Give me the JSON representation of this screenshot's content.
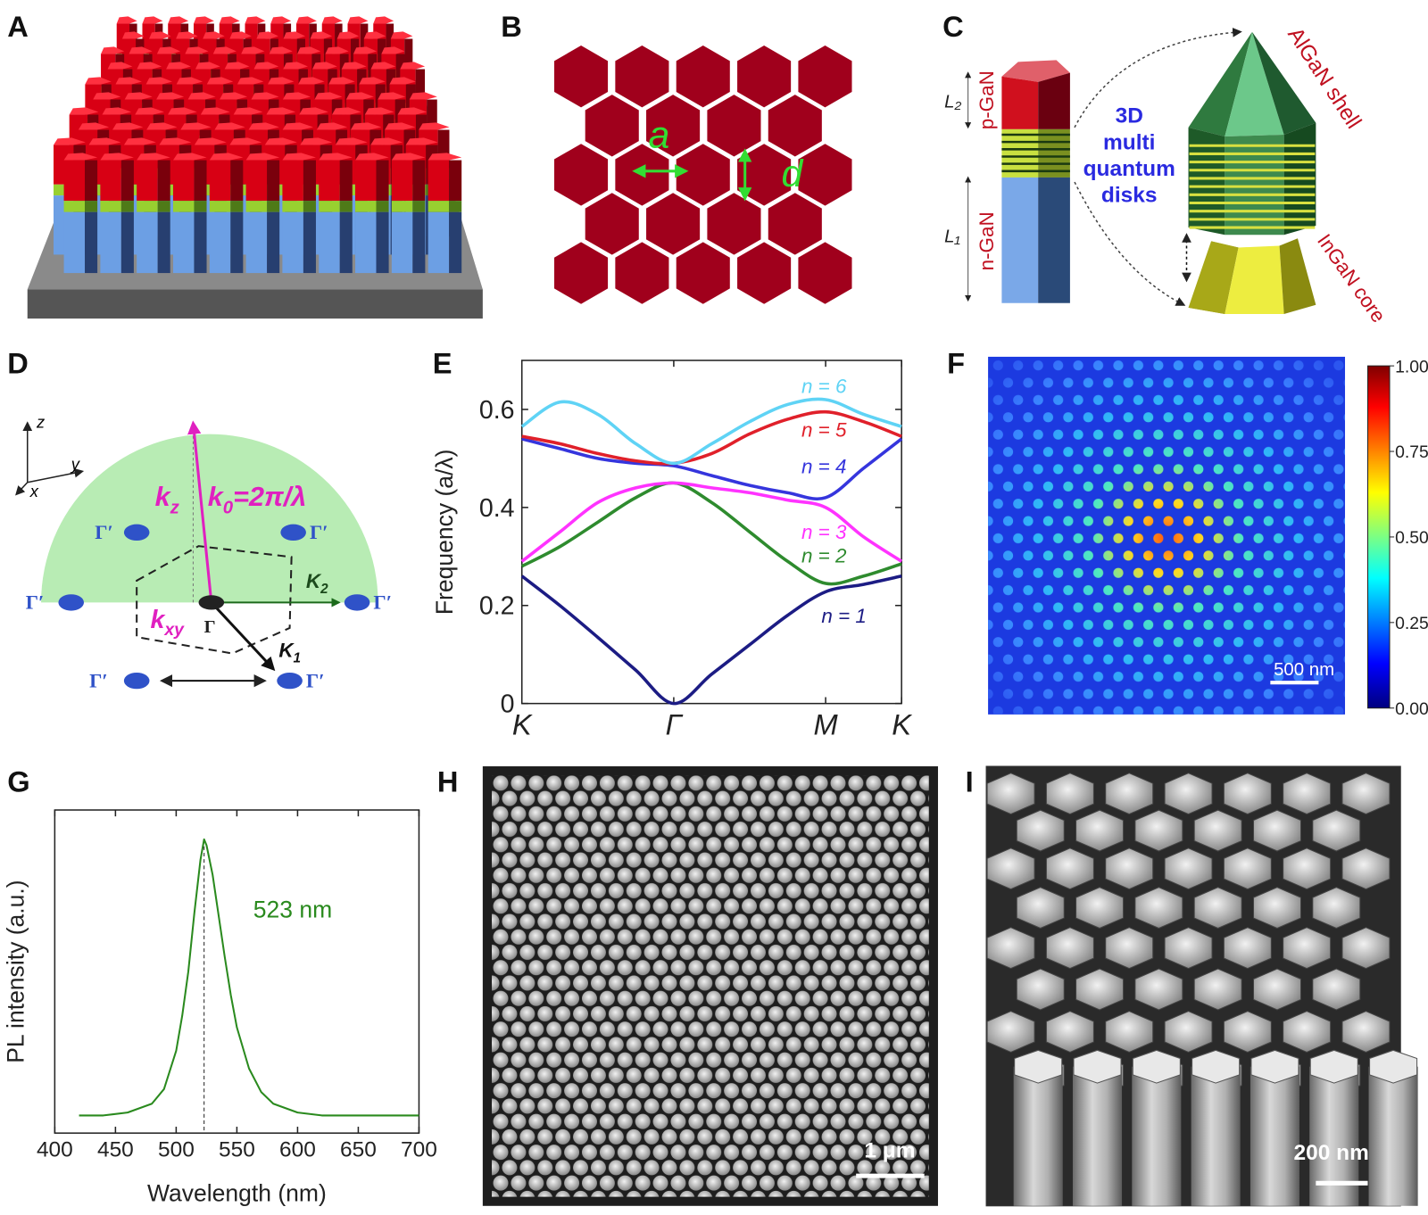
{
  "panel_labels": [
    "A",
    "B",
    "C",
    "D",
    "E",
    "F",
    "G",
    "H",
    "I"
  ],
  "panel_b": {
    "lattice_constant": "a",
    "diameter": "d"
  },
  "panel_c": {
    "l2": "L₂",
    "p_gan": "p-GaN",
    "l1": "L₁",
    "n_gan": "n-GaN",
    "disks": [
      "3D",
      "multi",
      "quantum",
      "disks"
    ],
    "shell": "AlGaN shell",
    "core": "InGaN core"
  },
  "panel_d": {
    "axes": [
      "z",
      "y",
      "x"
    ],
    "kz": {
      "main": "k",
      "sub": "z"
    },
    "k0": {
      "main": "k",
      "sub": "0",
      "rest": "=2π/λ"
    },
    "kxy": {
      "main": "k",
      "sub": "xy"
    },
    "gamma": "Γ",
    "gamma_primes": [
      "Γ′",
      "Γ′",
      "Γ′",
      "Γ′",
      "Γ′",
      "Γ′"
    ],
    "k2": {
      "main": "K",
      "sub": "2"
    },
    "k1": {
      "main": "K",
      "sub": "1"
    }
  },
  "chart_data": [
    {
      "type": "line",
      "ylabel": "Frequency (a/λ)",
      "x": [
        0,
        0.1,
        0.2,
        0.3,
        0.4,
        0.5,
        0.6,
        0.7,
        0.8,
        0.9,
        1.0
      ],
      "xlim": [
        0,
        1
      ],
      "xticks": [
        {
          "value": 0,
          "label": "K"
        },
        {
          "value": 0.4,
          "label": "Γ"
        },
        {
          "value": 0.8,
          "label": "M"
        },
        {
          "value": 1,
          "label": "K"
        }
      ],
      "ylim": [
        0,
        0.7
      ],
      "yticks": [
        0,
        0.2,
        0.4,
        0.6
      ],
      "series": [
        {
          "name": "n = 1",
          "color": "#1c1c84",
          "values": [
            0.26,
            0.2,
            0.135,
            0.068,
            0.0,
            0.06,
            0.12,
            0.18,
            0.228,
            0.243,
            0.26
          ]
        },
        {
          "name": "n = 2",
          "color": "#2e8b2e",
          "values": [
            0.28,
            0.32,
            0.37,
            0.42,
            0.45,
            0.41,
            0.35,
            0.29,
            0.245,
            0.26,
            0.285
          ]
        },
        {
          "name": "n = 3",
          "color": "#ff33ff",
          "values": [
            0.29,
            0.35,
            0.41,
            0.44,
            0.45,
            0.44,
            0.43,
            0.415,
            0.4,
            0.34,
            0.29
          ]
        },
        {
          "name": "n = 4",
          "color": "#3535dd",
          "values": [
            0.54,
            0.52,
            0.5,
            0.49,
            0.485,
            0.465,
            0.445,
            0.43,
            0.42,
            0.48,
            0.54
          ]
        },
        {
          "name": "n = 5",
          "color": "#e0202a",
          "values": [
            0.545,
            0.53,
            0.51,
            0.495,
            0.49,
            0.51,
            0.55,
            0.58,
            0.595,
            0.575,
            0.545
          ]
        },
        {
          "name": "n = 6",
          "color": "#5fd3f5",
          "values": [
            0.565,
            0.615,
            0.59,
            0.53,
            0.49,
            0.53,
            0.575,
            0.61,
            0.62,
            0.59,
            0.565
          ]
        }
      ]
    },
    {
      "type": "line",
      "xlabel": "Wavelength (nm)",
      "ylabel": "PL intensity (a.u.)",
      "color": "#2a8a1e",
      "x": [
        420,
        440,
        460,
        480,
        490,
        500,
        505,
        510,
        515,
        520,
        523,
        525,
        530,
        535,
        540,
        545,
        550,
        560,
        570,
        580,
        600,
        620,
        650,
        700
      ],
      "values": [
        0.06,
        0.06,
        0.07,
        0.1,
        0.15,
        0.28,
        0.4,
        0.55,
        0.75,
        0.93,
        1.0,
        0.98,
        0.88,
        0.74,
        0.6,
        0.47,
        0.36,
        0.22,
        0.14,
        0.1,
        0.07,
        0.06,
        0.06,
        0.06
      ],
      "xlim": [
        400,
        700
      ],
      "xticks": [
        400,
        450,
        500,
        550,
        600,
        650,
        700
      ],
      "ylim": [
        0,
        1.1
      ],
      "peak": 523,
      "annotation": "523 nm"
    }
  ],
  "panel_f": {
    "colorbar_lim": [
      0,
      1
    ],
    "colorbar_ticks": [
      {
        "value": 1,
        "label": "1.00"
      },
      {
        "value": 0.75,
        "label": "0.75"
      },
      {
        "value": 0.5,
        "label": "0.50"
      },
      {
        "value": 0.25,
        "label": "0.25"
      },
      {
        "value": 0,
        "label": "0.00"
      }
    ],
    "scale_bar": "500 nm"
  },
  "panel_h": {
    "scale_bar": "1 μm"
  },
  "panel_i": {
    "scale_bar": "200 nm"
  }
}
